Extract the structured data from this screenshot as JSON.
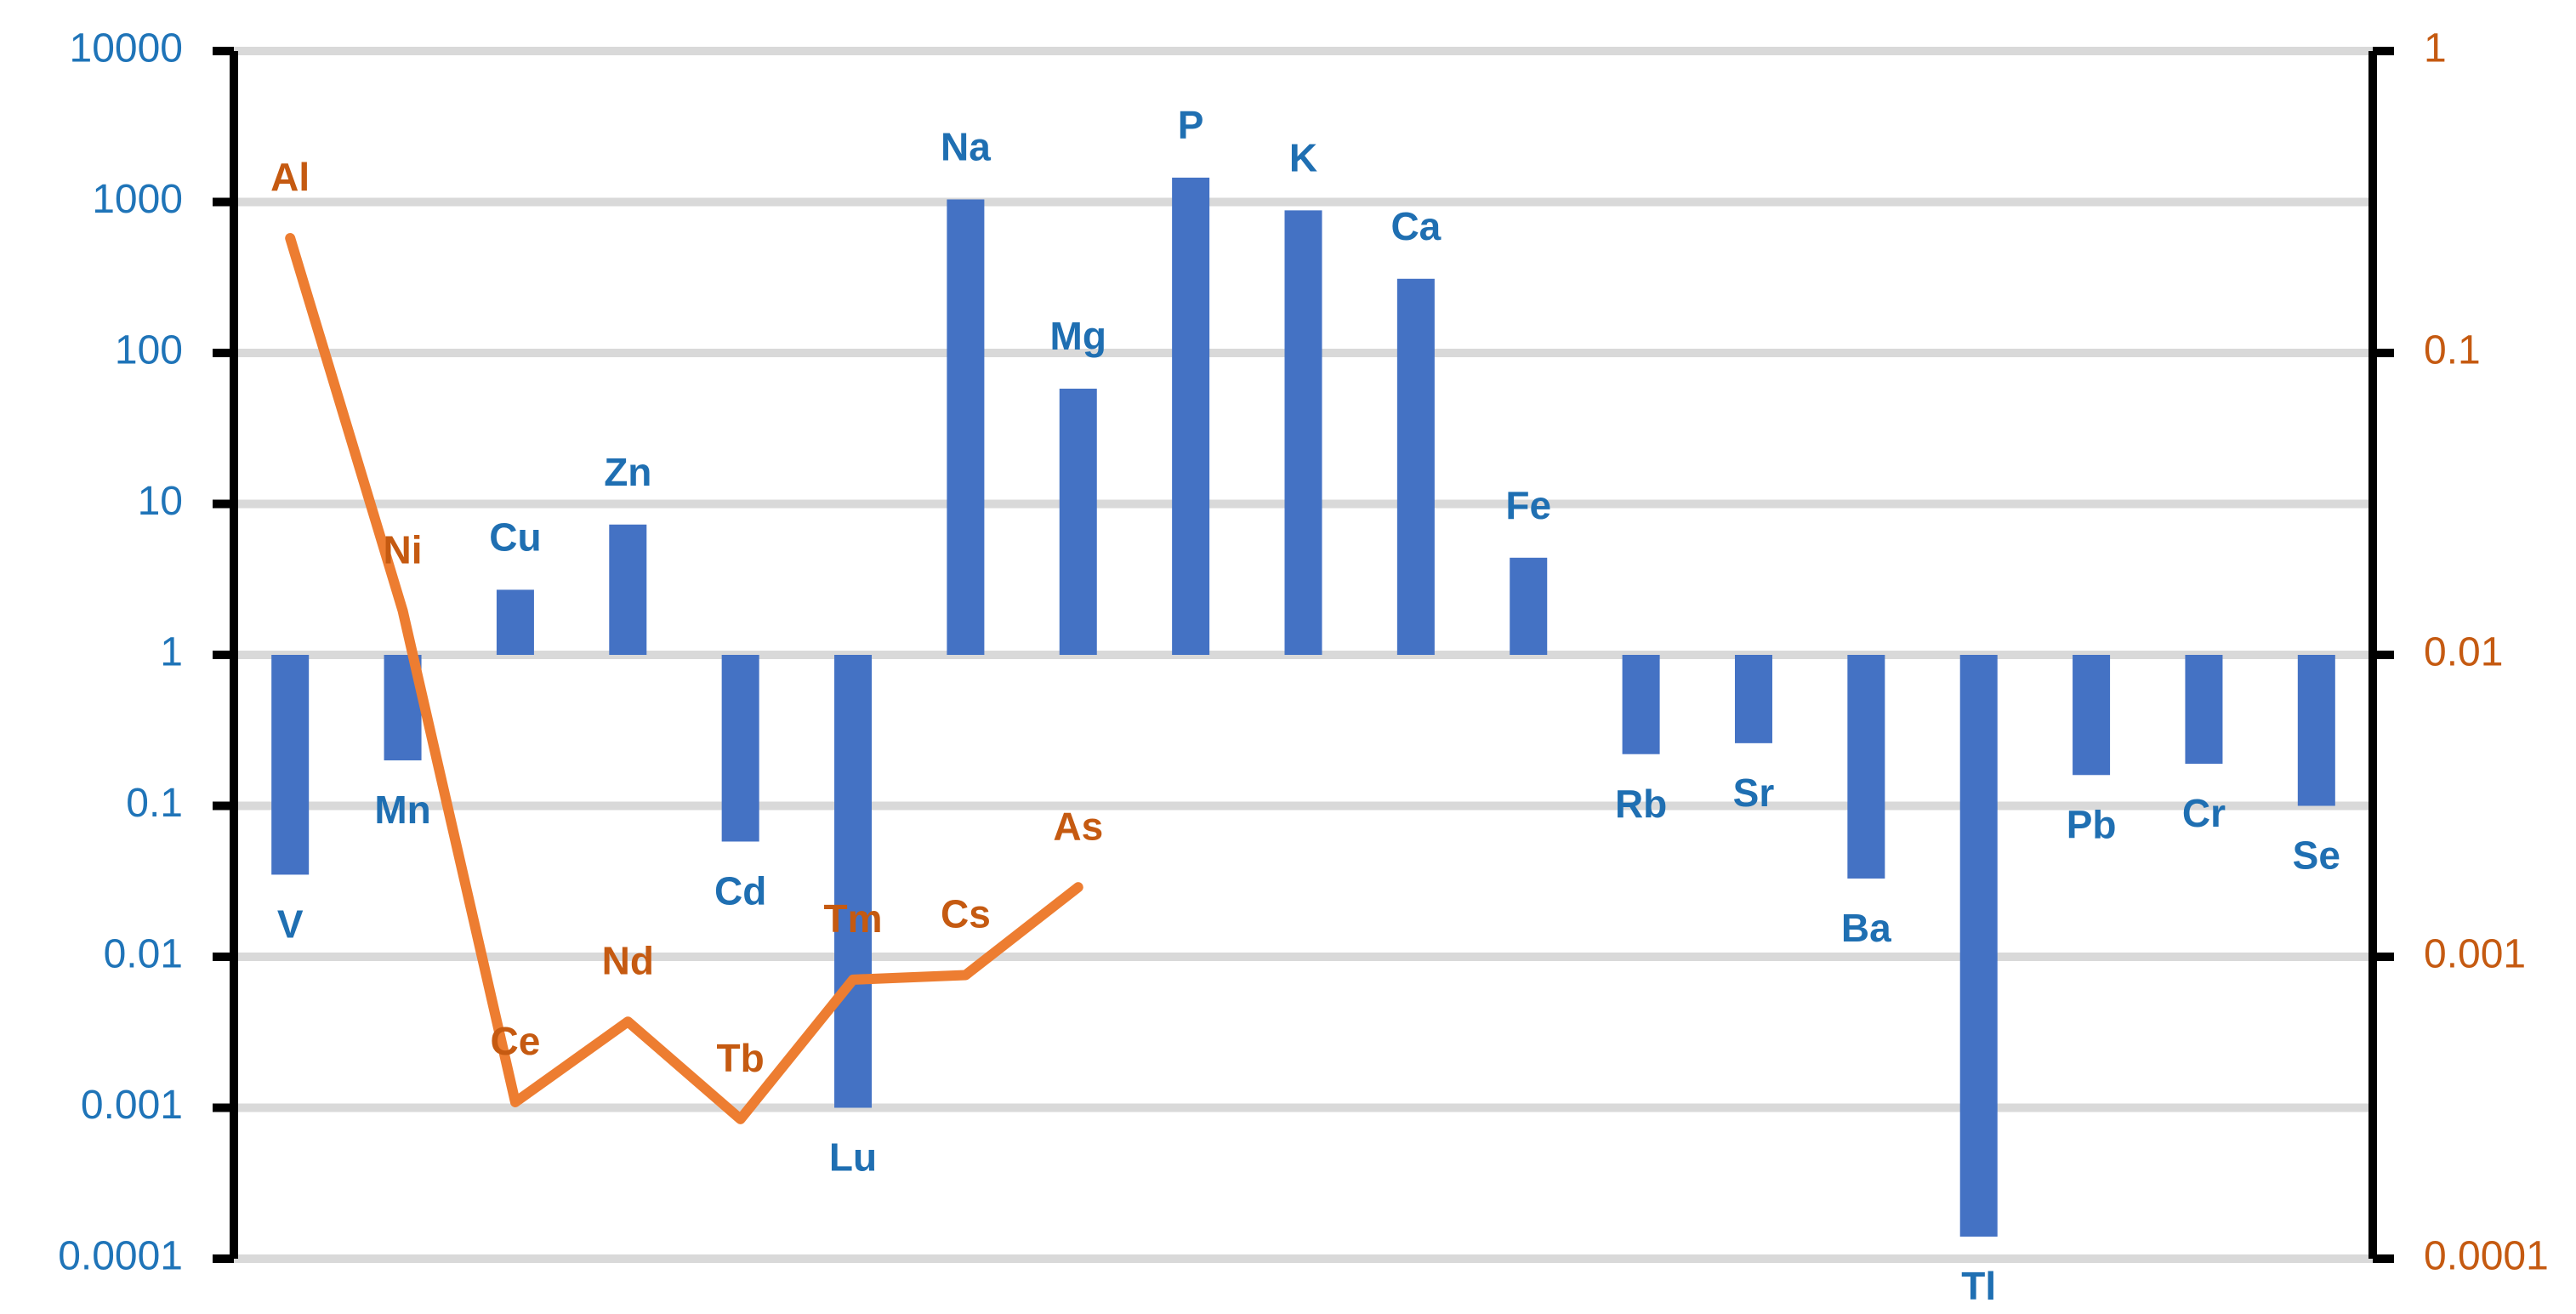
{
  "chart_data": {
    "type": "bar",
    "colors": {
      "bar": "#4472c4",
      "line": "#ed7d31",
      "left_axis_text": "#1f74b8",
      "right_axis_text": "#c55a11",
      "bar_label_text": "#1f6fb2",
      "line_label_text": "#c55a11"
    },
    "left_axis": {
      "scale": "log",
      "ylim": [
        0.0001,
        10000
      ],
      "ticks": [
        "10000",
        "1000",
        "100",
        "10",
        "1",
        "0.1",
        "0.01",
        "0.001",
        "0.0001"
      ]
    },
    "right_axis": {
      "scale": "log",
      "ylim": [
        0.0001,
        1
      ],
      "ticks": [
        "1",
        "0.1",
        "0.01",
        "0.001",
        "0.0001"
      ]
    },
    "bars": {
      "baseline": 1,
      "labels": [
        "V",
        "Mn",
        "Cu",
        "Zn",
        "Cd",
        "Lu",
        "Na",
        "Mg",
        "P",
        "K",
        "Ca",
        "Fe",
        "Rb",
        "Sr",
        "Ba",
        "Tl",
        "Pb",
        "Cr",
        "Se"
      ],
      "values": [
        0.035,
        0.2,
        2.7,
        7.3,
        0.058,
        0.001,
        1040,
        58,
        1450,
        880,
        310,
        4.4,
        0.22,
        0.26,
        0.033,
        0.00014,
        0.16,
        0.19,
        0.1
      ]
    },
    "line": {
      "labels": [
        "Al",
        "Ni",
        "Ce",
        "Nd",
        "Tb",
        "Tm",
        "Cs",
        "As"
      ],
      "values": [
        0.24,
        0.014,
        0.00033,
        0.00061,
        0.00029,
        0.00084,
        0.00087,
        0.0017
      ]
    }
  }
}
